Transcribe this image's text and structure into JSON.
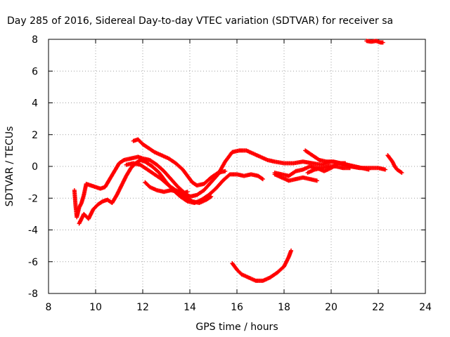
{
  "chart_data": {
    "type": "scatter",
    "title": "Day 285 of 2016, Sidereal Day-to-day VTEC variation (SDTVAR) for receiver sa",
    "xlabel": "GPS time / hours",
    "ylabel": "SDTVAR / TECUs",
    "xlim": [
      8,
      24
    ],
    "ylim": [
      -8,
      8
    ],
    "xticks": [
      "8",
      "10",
      "12",
      "14",
      "16",
      "18",
      "20",
      "22",
      "24"
    ],
    "yticks": [
      "8",
      "6",
      "4",
      "2",
      "0",
      "-2",
      "-4",
      "-6",
      "-8"
    ],
    "grid": true,
    "legend": "none",
    "marker": "plus",
    "color": "#ff0000",
    "series": [
      {
        "points": [
          [
            9.1,
            -1.5
          ],
          [
            9.15,
            -2.5
          ],
          [
            9.2,
            -3.2
          ],
          [
            9.3,
            -2.6
          ],
          [
            9.4,
            -2.3
          ],
          [
            9.5,
            -1.8
          ],
          [
            9.6,
            -1.1
          ],
          [
            9.8,
            -1.2
          ],
          [
            10.0,
            -1.3
          ],
          [
            10.2,
            -1.4
          ],
          [
            10.4,
            -1.3
          ],
          [
            10.6,
            -0.8
          ],
          [
            10.8,
            -0.3
          ],
          [
            11.0,
            0.2
          ],
          [
            11.2,
            0.4
          ],
          [
            11.5,
            0.5
          ],
          [
            11.8,
            0.6
          ],
          [
            12.0,
            0.5
          ],
          [
            12.3,
            0.4
          ],
          [
            12.6,
            0.1
          ],
          [
            12.9,
            -0.3
          ],
          [
            13.2,
            -0.8
          ],
          [
            13.5,
            -1.3
          ],
          [
            13.8,
            -1.7
          ],
          [
            14.0,
            -1.9
          ],
          [
            14.3,
            -1.8
          ],
          [
            14.6,
            -1.5
          ],
          [
            14.9,
            -1.0
          ],
          [
            15.2,
            -0.5
          ],
          [
            15.5,
            0.3
          ],
          [
            15.8,
            0.9
          ],
          [
            16.1,
            1.0
          ],
          [
            16.4,
            1.0
          ],
          [
            16.7,
            0.8
          ],
          [
            17.0,
            0.6
          ],
          [
            17.3,
            0.4
          ],
          [
            17.6,
            0.3
          ],
          [
            18.0,
            0.2
          ],
          [
            18.4,
            0.2
          ],
          [
            18.8,
            0.3
          ],
          [
            19.2,
            0.2
          ],
          [
            19.6,
            0.1
          ],
          [
            20.0,
            0.3
          ],
          [
            20.4,
            0.2
          ],
          [
            20.8,
            0.0
          ],
          [
            21.2,
            -0.1
          ],
          [
            21.6,
            -0.1
          ],
          [
            22.0,
            -0.1
          ],
          [
            22.3,
            -0.2
          ]
        ]
      },
      {
        "points": [
          [
            9.3,
            -3.6
          ],
          [
            9.4,
            -3.3
          ],
          [
            9.5,
            -3.0
          ],
          [
            9.7,
            -3.3
          ],
          [
            9.9,
            -2.7
          ],
          [
            10.1,
            -2.4
          ],
          [
            10.3,
            -2.2
          ],
          [
            10.5,
            -2.1
          ],
          [
            10.7,
            -2.3
          ],
          [
            10.9,
            -1.8
          ],
          [
            11.1,
            -1.2
          ],
          [
            11.3,
            -0.6
          ],
          [
            11.5,
            -0.1
          ],
          [
            11.7,
            0.2
          ],
          [
            11.9,
            0.4
          ],
          [
            12.1,
            0.3
          ],
          [
            12.4,
            0.0
          ],
          [
            12.7,
            -0.4
          ],
          [
            13.0,
            -1.0
          ],
          [
            13.3,
            -1.5
          ],
          [
            13.6,
            -1.9
          ],
          [
            13.9,
            -2.2
          ],
          [
            14.2,
            -2.3
          ],
          [
            14.5,
            -2.1
          ],
          [
            14.8,
            -1.8
          ],
          [
            15.1,
            -1.4
          ],
          [
            15.4,
            -0.9
          ],
          [
            15.7,
            -0.5
          ],
          [
            16.0,
            -0.5
          ],
          [
            16.3,
            -0.6
          ],
          [
            16.6,
            -0.5
          ],
          [
            16.9,
            -0.6
          ],
          [
            17.1,
            -0.8
          ]
        ]
      },
      {
        "points": [
          [
            11.6,
            1.6
          ],
          [
            11.8,
            1.7
          ],
          [
            12.0,
            1.4
          ],
          [
            12.2,
            1.2
          ],
          [
            12.5,
            0.9
          ],
          [
            12.8,
            0.7
          ],
          [
            13.1,
            0.5
          ],
          [
            13.4,
            0.2
          ],
          [
            13.7,
            -0.2
          ],
          [
            13.9,
            -0.6
          ],
          [
            14.1,
            -1.0
          ],
          [
            14.3,
            -1.2
          ],
          [
            14.6,
            -1.1
          ],
          [
            14.9,
            -0.7
          ],
          [
            15.2,
            -0.4
          ],
          [
            15.5,
            -0.3
          ]
        ]
      },
      {
        "points": [
          [
            11.3,
            0.1
          ],
          [
            11.6,
            0.2
          ],
          [
            11.9,
            0.1
          ],
          [
            12.2,
            -0.2
          ],
          [
            12.5,
            -0.5
          ],
          [
            12.8,
            -0.8
          ],
          [
            13.1,
            -1.2
          ],
          [
            13.4,
            -1.5
          ],
          [
            13.7,
            -1.7
          ],
          [
            13.9,
            -1.6
          ]
        ]
      },
      {
        "points": [
          [
            12.1,
            -1.0
          ],
          [
            12.3,
            -1.3
          ],
          [
            12.6,
            -1.5
          ],
          [
            12.9,
            -1.6
          ],
          [
            13.2,
            -1.5
          ],
          [
            13.5,
            -1.6
          ],
          [
            13.8,
            -1.9
          ],
          [
            14.1,
            -2.2
          ],
          [
            14.4,
            -2.3
          ],
          [
            14.7,
            -2.1
          ],
          [
            14.9,
            -1.9
          ]
        ]
      },
      {
        "points": [
          [
            17.6,
            -0.4
          ],
          [
            17.9,
            -0.5
          ],
          [
            18.2,
            -0.6
          ],
          [
            18.5,
            -0.3
          ],
          [
            18.8,
            -0.2
          ],
          [
            19.1,
            0.0
          ],
          [
            19.4,
            -0.1
          ],
          [
            19.7,
            -0.3
          ],
          [
            20.0,
            -0.1
          ],
          [
            20.3,
            0.2
          ],
          [
            20.6,
            0.2
          ]
        ]
      },
      {
        "points": [
          [
            17.6,
            -0.5
          ],
          [
            17.9,
            -0.7
          ],
          [
            18.2,
            -0.9
          ],
          [
            18.5,
            -0.8
          ],
          [
            18.8,
            -0.7
          ],
          [
            19.1,
            -0.8
          ],
          [
            19.4,
            -0.9
          ]
        ]
      },
      {
        "points": [
          [
            18.9,
            1.0
          ],
          [
            19.2,
            0.7
          ],
          [
            19.5,
            0.4
          ],
          [
            19.8,
            0.3
          ],
          [
            20.1,
            0.3
          ],
          [
            20.4,
            0.2
          ],
          [
            20.7,
            0.1
          ],
          [
            21.0,
            0.0
          ],
          [
            21.3,
            -0.1
          ],
          [
            21.6,
            -0.2
          ]
        ]
      },
      {
        "points": [
          [
            19.0,
            -0.4
          ],
          [
            19.3,
            -0.2
          ],
          [
            19.6,
            -0.1
          ],
          [
            19.9,
            0.0
          ],
          [
            20.2,
            0.0
          ],
          [
            20.5,
            -0.1
          ],
          [
            20.8,
            -0.1
          ]
        ]
      },
      {
        "points": [
          [
            22.4,
            0.7
          ],
          [
            22.5,
            0.5
          ],
          [
            22.6,
            0.3
          ],
          [
            22.7,
            0.0
          ],
          [
            22.8,
            -0.2
          ],
          [
            22.9,
            -0.3
          ],
          [
            23.0,
            -0.4
          ]
        ]
      },
      {
        "points": [
          [
            15.8,
            -6.1
          ],
          [
            16.0,
            -6.5
          ],
          [
            16.2,
            -6.8
          ],
          [
            16.5,
            -7.0
          ],
          [
            16.8,
            -7.2
          ],
          [
            17.1,
            -7.2
          ],
          [
            17.4,
            -7.0
          ],
          [
            17.7,
            -6.7
          ],
          [
            18.0,
            -6.3
          ],
          [
            18.2,
            -5.7
          ],
          [
            18.3,
            -5.3
          ]
        ]
      },
      {
        "points": [
          [
            21.5,
            7.9
          ],
          [
            21.7,
            7.85
          ],
          [
            21.9,
            7.9
          ],
          [
            22.1,
            7.8
          ],
          [
            22.2,
            7.8
          ]
        ]
      }
    ]
  }
}
